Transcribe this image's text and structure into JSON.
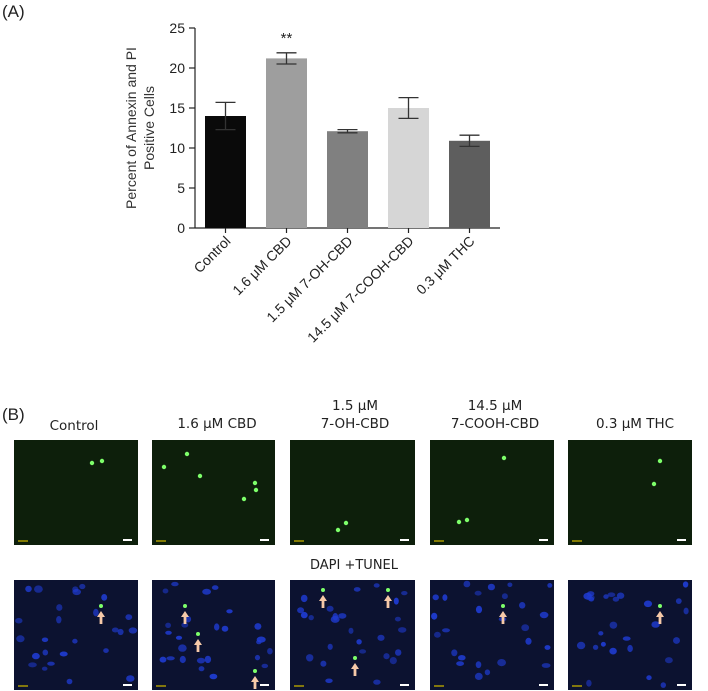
{
  "panel_a_label": "(A)",
  "panel_b_label": "(B)",
  "chart_data": {
    "type": "bar",
    "categories": [
      "Control",
      "1.6 μM CBD",
      "1.5 μM 7-OH-CBD",
      "14.5 μM 7-COOH-CBD",
      "0.3 μM THC"
    ],
    "values": [
      14.0,
      21.2,
      12.1,
      15.0,
      10.9
    ],
    "errors": [
      1.7,
      0.7,
      0.2,
      1.3,
      0.7
    ],
    "colors": [
      "#0a0a0a",
      "#9e9e9e",
      "#808080",
      "#d6d6d6",
      "#5e5e5e"
    ],
    "significance": [
      "",
      "**",
      "",
      "",
      ""
    ],
    "ylabel_lines": [
      "Percent of Annexin and PI",
      "Positive Cells"
    ],
    "yticks": [
      0,
      5,
      10,
      15,
      20,
      25
    ],
    "ylim": [
      0,
      25
    ],
    "grid": false
  },
  "micro_columns": [
    {
      "lines": [
        "Control"
      ]
    },
    {
      "lines": [
        "1.6 μM CBD"
      ]
    },
    {
      "lines": [
        "1.5 μM",
        "7-OH-CBD"
      ]
    },
    {
      "lines": [
        "14.5 μM",
        "7-COOH-CBD"
      ]
    },
    {
      "lines": [
        "0.3 μM THC"
      ]
    }
  ],
  "row_label": "DAPI +TUNEL",
  "image_colors": {
    "green_field": "#0d1f0b",
    "blue_field": "#0c1230",
    "green_dot": "#7dff6a",
    "blue_cell": "#1f3bd0",
    "arrow": "#f6c9a8"
  }
}
